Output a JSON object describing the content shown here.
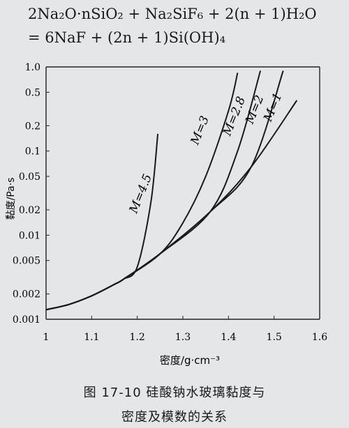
{
  "equation": {
    "line1": "2Na₂O·nSiO₂ + Na₂SiF₆ + 2(n + 1)H₂O",
    "line2": "= 6NaF + (2n + 1)Si(OH)₄"
  },
  "caption": {
    "line1": "图 17-10   硅酸钠水玻璃黏度与",
    "line2": "密度及模数的关系"
  },
  "chart_data": {
    "type": "line",
    "xlabel": "密度/g·cm⁻³",
    "ylabel": "黏度/Pa·s",
    "xlim": [
      1.0,
      1.6
    ],
    "ylim": [
      0.001,
      1.0
    ],
    "yscale": "log",
    "x_ticks": [
      1.0,
      1.1,
      1.2,
      1.3,
      1.4,
      1.5,
      1.6
    ],
    "x_tick_labels": [
      "1",
      "1.1",
      "1.2",
      "1.3",
      "1.4",
      "1.5",
      "1.6"
    ],
    "y_ticks": [
      0.001,
      0.002,
      0.005,
      0.01,
      0.02,
      0.05,
      0.1,
      0.2,
      0.5,
      1.0
    ],
    "y_tick_labels": [
      "0.001",
      "0.002",
      "0.005",
      "0.01",
      "0.02",
      "0.05",
      "0.1",
      "0.2",
      "0.5",
      "1.0"
    ],
    "grid": false,
    "series": [
      {
        "name": "M=4.5",
        "x": [
          1.0,
          1.05,
          1.1,
          1.15,
          1.17,
          1.2,
          1.23,
          1.245
        ],
        "y": [
          0.0013,
          0.0015,
          0.0019,
          0.0026,
          0.003,
          0.0042,
          0.025,
          0.16
        ]
      },
      {
        "name": "M=3",
        "x": [
          1.0,
          1.05,
          1.1,
          1.15,
          1.17,
          1.25,
          1.3,
          1.35,
          1.4,
          1.42
        ],
        "y": [
          0.0013,
          0.0015,
          0.0019,
          0.0026,
          0.003,
          0.006,
          0.014,
          0.05,
          0.3,
          0.85
        ]
      },
      {
        "name": "M=2.8",
        "x": [
          1.0,
          1.05,
          1.1,
          1.15,
          1.17,
          1.25,
          1.36,
          1.42,
          1.47
        ],
        "y": [
          0.0013,
          0.0015,
          0.0019,
          0.0026,
          0.003,
          0.006,
          0.019,
          0.1,
          0.9
        ]
      },
      {
        "name": "M=2",
        "x": [
          1.0,
          1.05,
          1.1,
          1.15,
          1.17,
          1.25,
          1.36,
          1.45,
          1.52
        ],
        "y": [
          0.0013,
          0.0015,
          0.0019,
          0.0026,
          0.003,
          0.006,
          0.019,
          0.065,
          0.9
        ]
      },
      {
        "name": "M=1",
        "x": [
          1.0,
          1.05,
          1.1,
          1.15,
          1.17,
          1.25,
          1.36,
          1.45,
          1.55
        ],
        "y": [
          0.0013,
          0.0015,
          0.0019,
          0.0026,
          0.003,
          0.006,
          0.019,
          0.065,
          0.4
        ]
      }
    ],
    "curve_labels": [
      {
        "text": "M=4.5",
        "x": 1.215,
        "y": 0.03
      },
      {
        "text": "M=3",
        "x": 1.345,
        "y": 0.17
      },
      {
        "text": "M=2.8",
        "x": 1.42,
        "y": 0.25
      },
      {
        "text": "M=2",
        "x": 1.465,
        "y": 0.3
      },
      {
        "text": "M=1",
        "x": 1.505,
        "y": 0.32
      }
    ]
  }
}
